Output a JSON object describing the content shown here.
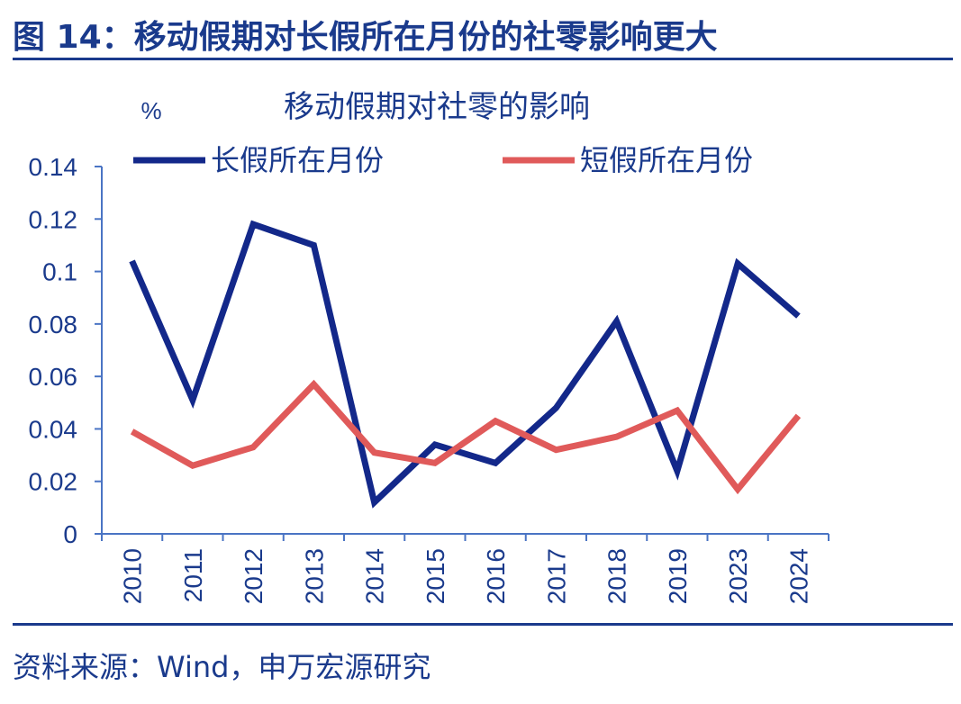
{
  "figure": {
    "title": "图 14：移动假期对长假所在月份的社零影响更大",
    "source": "资料来源：Wind，申万宏源研究"
  },
  "colors": {
    "text": "#1a3a8c",
    "rule": "#1a3a8c",
    "axis": "#4a74c4"
  },
  "chart_data": {
    "type": "line",
    "title": "移动假期对社零的影响",
    "unit": "%",
    "xlabel": "",
    "ylabel": "",
    "categories": [
      "2010",
      "2011",
      "2012",
      "2013",
      "2014",
      "2015",
      "2016",
      "2017",
      "2018",
      "2019",
      "2023",
      "2024"
    ],
    "ylim": [
      0,
      0.14
    ],
    "yticks": [
      "0",
      "0.02",
      "0.04",
      "0.06",
      "0.08",
      "0.1",
      "0.12",
      "0.14"
    ],
    "grid": false,
    "legend_position": "top",
    "series": [
      {
        "name": "长假所在月份",
        "color": "#13288a",
        "values": [
          0.104,
          0.051,
          0.118,
          0.11,
          0.012,
          0.034,
          0.027,
          0.048,
          0.081,
          0.024,
          0.103,
          0.083
        ]
      },
      {
        "name": "短假所在月份",
        "color": "#e05a5a",
        "values": [
          0.039,
          0.026,
          0.033,
          0.057,
          0.031,
          0.027,
          0.043,
          0.032,
          0.037,
          0.047,
          0.017,
          0.045
        ]
      }
    ]
  }
}
